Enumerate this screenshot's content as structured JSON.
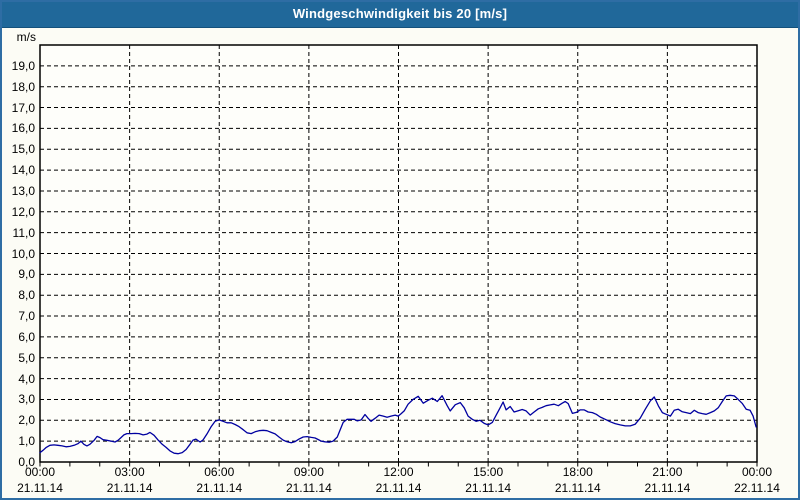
{
  "window": {
    "title": "Windgeschwindigkeit bis 20 [m/s]"
  },
  "colors": {
    "titlebar_bg": "#20689a",
    "titlebar_text": "#ffffff",
    "outer_border": "#2e6da4",
    "page_bg": "#fcfcf5",
    "plot_bg": "#fefefa",
    "grid_color": "#000000",
    "axis_color": "#000000",
    "line_color": "#0000a0",
    "label_color": "#000000"
  },
  "chart_data": {
    "type": "line",
    "title": "Windgeschwindigkeit bis 20 [m/s]",
    "y_unit": "m/s",
    "ylim": [
      0,
      20
    ],
    "xlim_hours": [
      0,
      24
    ],
    "grid": "dashed",
    "legend_position": "none",
    "y_tick_labels": [
      "0,0",
      "1,0",
      "2,0",
      "3,0",
      "4,0",
      "5,0",
      "6,0",
      "7,0",
      "8,0",
      "9,0",
      "10,0",
      "11,0",
      "12,0",
      "13,0",
      "14,0",
      "15,0",
      "16,0",
      "17,0",
      "18,0",
      "19,0"
    ],
    "y_tick_values": [
      0,
      1,
      2,
      3,
      4,
      5,
      6,
      7,
      8,
      9,
      10,
      11,
      12,
      13,
      14,
      15,
      16,
      17,
      18,
      19
    ],
    "x_ticks": [
      {
        "hour": 0,
        "time": "00:00",
        "date": "21.11.14"
      },
      {
        "hour": 3,
        "time": "03:00",
        "date": "21.11.14"
      },
      {
        "hour": 6,
        "time": "06:00",
        "date": "21.11.14"
      },
      {
        "hour": 9,
        "time": "09:00",
        "date": "21.11.14"
      },
      {
        "hour": 12,
        "time": "12:00",
        "date": "21.11.14"
      },
      {
        "hour": 15,
        "time": "15:00",
        "date": "21.11.14"
      },
      {
        "hour": 18,
        "time": "18:00",
        "date": "21.11.14"
      },
      {
        "hour": 21,
        "time": "21:00",
        "date": "21.11.14"
      },
      {
        "hour": 24,
        "time": "00:00",
        "date": "22.11.14"
      }
    ],
    "minor_tick_every_hours": 1,
    "vgrid_every_hours": 3,
    "series": [
      {
        "points": [
          [
            0.0,
            0.45
          ],
          [
            0.1,
            0.56
          ],
          [
            0.2,
            0.69
          ],
          [
            0.33,
            0.8
          ],
          [
            0.47,
            0.82
          ],
          [
            0.6,
            0.8
          ],
          [
            0.74,
            0.77
          ],
          [
            0.87,
            0.73
          ],
          [
            1.0,
            0.75
          ],
          [
            1.14,
            0.8
          ],
          [
            1.27,
            0.88
          ],
          [
            1.37,
            1.0
          ],
          [
            1.47,
            0.85
          ],
          [
            1.57,
            0.77
          ],
          [
            1.67,
            0.85
          ],
          [
            1.81,
            1.04
          ],
          [
            1.91,
            1.23
          ],
          [
            2.01,
            1.17
          ],
          [
            2.11,
            1.07
          ],
          [
            2.24,
            1.04
          ],
          [
            2.38,
            1.0
          ],
          [
            2.51,
            0.96
          ],
          [
            2.61,
            1.04
          ],
          [
            2.71,
            1.17
          ],
          [
            2.81,
            1.3
          ],
          [
            2.91,
            1.36
          ],
          [
            3.05,
            1.36
          ],
          [
            3.18,
            1.37
          ],
          [
            3.32,
            1.36
          ],
          [
            3.45,
            1.3
          ],
          [
            3.58,
            1.34
          ],
          [
            3.68,
            1.42
          ],
          [
            3.82,
            1.28
          ],
          [
            3.95,
            1.06
          ],
          [
            4.09,
            0.85
          ],
          [
            4.22,
            0.7
          ],
          [
            4.35,
            0.53
          ],
          [
            4.49,
            0.42
          ],
          [
            4.62,
            0.4
          ],
          [
            4.76,
            0.45
          ],
          [
            4.89,
            0.6
          ],
          [
            5.02,
            0.85
          ],
          [
            5.12,
            1.05
          ],
          [
            5.22,
            1.1
          ],
          [
            5.36,
            0.96
          ],
          [
            5.46,
            1.06
          ],
          [
            5.59,
            1.35
          ],
          [
            5.73,
            1.7
          ],
          [
            5.86,
            1.95
          ],
          [
            5.99,
            2.02
          ],
          [
            6.13,
            1.95
          ],
          [
            6.26,
            1.88
          ],
          [
            6.4,
            1.88
          ],
          [
            6.53,
            1.8
          ],
          [
            6.66,
            1.7
          ],
          [
            6.8,
            1.55
          ],
          [
            6.93,
            1.4
          ],
          [
            7.07,
            1.36
          ],
          [
            7.2,
            1.45
          ],
          [
            7.33,
            1.5
          ],
          [
            7.47,
            1.52
          ],
          [
            7.6,
            1.5
          ],
          [
            7.74,
            1.42
          ],
          [
            7.87,
            1.35
          ],
          [
            8.0,
            1.2
          ],
          [
            8.14,
            1.05
          ],
          [
            8.27,
            0.97
          ],
          [
            8.41,
            0.92
          ],
          [
            8.54,
            0.98
          ],
          [
            8.67,
            1.1
          ],
          [
            8.81,
            1.2
          ],
          [
            8.94,
            1.22
          ],
          [
            9.08,
            1.18
          ],
          [
            9.21,
            1.15
          ],
          [
            9.31,
            1.08
          ],
          [
            9.41,
            1.0
          ],
          [
            9.54,
            0.97
          ],
          [
            9.68,
            0.95
          ],
          [
            9.81,
            1.0
          ],
          [
            9.95,
            1.2
          ],
          [
            10.05,
            1.55
          ],
          [
            10.15,
            1.9
          ],
          [
            10.28,
            2.05
          ],
          [
            10.41,
            2.05
          ],
          [
            10.52,
            2.05
          ],
          [
            10.62,
            1.97
          ],
          [
            10.75,
            2.02
          ],
          [
            10.88,
            2.28
          ],
          [
            10.98,
            2.1
          ],
          [
            11.08,
            1.95
          ],
          [
            11.22,
            2.1
          ],
          [
            11.35,
            2.25
          ],
          [
            11.49,
            2.2
          ],
          [
            11.62,
            2.15
          ],
          [
            11.75,
            2.2
          ],
          [
            11.89,
            2.25
          ],
          [
            11.99,
            2.2
          ],
          [
            12.09,
            2.32
          ],
          [
            12.19,
            2.45
          ],
          [
            12.32,
            2.77
          ],
          [
            12.49,
            3.0
          ],
          [
            12.66,
            3.15
          ],
          [
            12.83,
            2.82
          ],
          [
            12.99,
            2.96
          ],
          [
            13.13,
            3.06
          ],
          [
            13.3,
            2.9
          ],
          [
            13.46,
            3.18
          ],
          [
            13.63,
            2.7
          ],
          [
            13.73,
            2.45
          ],
          [
            13.9,
            2.75
          ],
          [
            14.07,
            2.85
          ],
          [
            14.2,
            2.6
          ],
          [
            14.33,
            2.2
          ],
          [
            14.47,
            2.05
          ],
          [
            14.6,
            1.95
          ],
          [
            14.73,
            2.0
          ],
          [
            14.87,
            1.85
          ],
          [
            15.0,
            1.78
          ],
          [
            15.14,
            1.9
          ],
          [
            15.27,
            2.25
          ],
          [
            15.4,
            2.6
          ],
          [
            15.5,
            2.88
          ],
          [
            15.6,
            2.5
          ],
          [
            15.74,
            2.66
          ],
          [
            15.87,
            2.4
          ],
          [
            16.01,
            2.46
          ],
          [
            16.14,
            2.52
          ],
          [
            16.27,
            2.45
          ],
          [
            16.41,
            2.25
          ],
          [
            16.54,
            2.4
          ],
          [
            16.68,
            2.55
          ],
          [
            16.81,
            2.62
          ],
          [
            16.94,
            2.7
          ],
          [
            17.08,
            2.74
          ],
          [
            17.21,
            2.77
          ],
          [
            17.35,
            2.7
          ],
          [
            17.48,
            2.82
          ],
          [
            17.58,
            2.9
          ],
          [
            17.68,
            2.8
          ],
          [
            17.82,
            2.33
          ],
          [
            17.95,
            2.38
          ],
          [
            18.08,
            2.5
          ],
          [
            18.22,
            2.5
          ],
          [
            18.35,
            2.4
          ],
          [
            18.49,
            2.37
          ],
          [
            18.62,
            2.29
          ],
          [
            18.75,
            2.16
          ],
          [
            18.92,
            2.05
          ],
          [
            19.09,
            1.93
          ],
          [
            19.25,
            1.84
          ],
          [
            19.42,
            1.78
          ],
          [
            19.59,
            1.73
          ],
          [
            19.76,
            1.73
          ],
          [
            19.92,
            1.81
          ],
          [
            20.09,
            2.1
          ],
          [
            20.26,
            2.53
          ],
          [
            20.43,
            2.93
          ],
          [
            20.56,
            3.12
          ],
          [
            20.7,
            2.69
          ],
          [
            20.83,
            2.37
          ],
          [
            20.96,
            2.29
          ],
          [
            21.1,
            2.2
          ],
          [
            21.23,
            2.48
          ],
          [
            21.36,
            2.53
          ],
          [
            21.5,
            2.41
          ],
          [
            21.63,
            2.37
          ],
          [
            21.77,
            2.32
          ],
          [
            21.9,
            2.48
          ],
          [
            22.03,
            2.37
          ],
          [
            22.17,
            2.32
          ],
          [
            22.3,
            2.29
          ],
          [
            22.44,
            2.37
          ],
          [
            22.57,
            2.45
          ],
          [
            22.7,
            2.6
          ],
          [
            22.84,
            2.9
          ],
          [
            22.97,
            3.17
          ],
          [
            23.1,
            3.2
          ],
          [
            23.24,
            3.17
          ],
          [
            23.37,
            3.0
          ],
          [
            23.51,
            2.8
          ],
          [
            23.64,
            2.53
          ],
          [
            23.77,
            2.48
          ],
          [
            23.87,
            2.2
          ],
          [
            23.97,
            1.68
          ]
        ]
      }
    ]
  }
}
